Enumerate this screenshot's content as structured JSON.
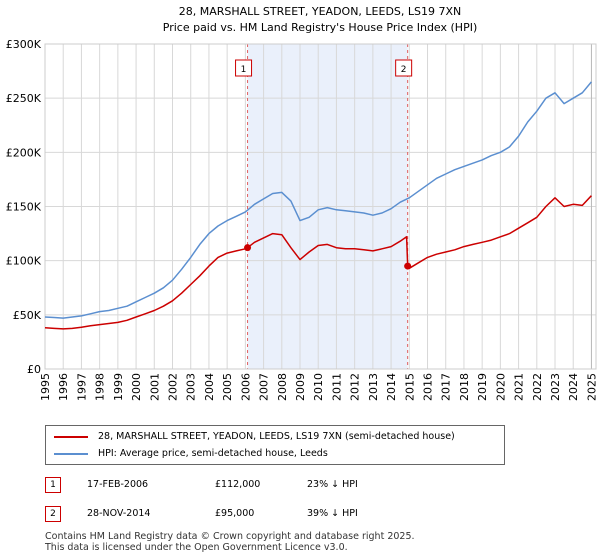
{
  "chart_data": {
    "type": "line",
    "title": "28, MARSHALL STREET, YEADON, LEEDS, LS19 7XN",
    "subtitle": "Price paid vs. HM Land Registry's House Price Index (HPI)",
    "xlabel": "",
    "ylabel": "",
    "xlim": [
      1995,
      2025.25
    ],
    "ylim": [
      0,
      300000
    ],
    "x_ticks": [
      1995,
      1996,
      1997,
      1998,
      1999,
      2000,
      2001,
      2002,
      2003,
      2004,
      2005,
      2006,
      2007,
      2008,
      2009,
      2010,
      2011,
      2012,
      2013,
      2014,
      2015,
      2016,
      2017,
      2018,
      2019,
      2020,
      2021,
      2022,
      2023,
      2024,
      2025
    ],
    "y_ticks": [
      0,
      50000,
      100000,
      150000,
      200000,
      250000,
      300000
    ],
    "y_tick_labels": [
      "£0",
      "£50K",
      "£100K",
      "£150K",
      "£200K",
      "£250K",
      "£300K"
    ],
    "grid": true,
    "shaded_region": [
      2006.12,
      2014.91
    ],
    "series": [
      {
        "name": "28, MARSHALL STREET, YEADON, LEEDS, LS19 7XN (semi-detached house)",
        "color": "#cc0000",
        "x": [
          1995.0,
          1995.5,
          1996.0,
          1996.5,
          1997.0,
          1997.5,
          1998.0,
          1998.5,
          1999.0,
          1999.5,
          2000.0,
          2000.5,
          2001.0,
          2001.5,
          2002.0,
          2002.5,
          2003.0,
          2003.5,
          2004.0,
          2004.5,
          2005.0,
          2005.5,
          2006.0,
          2006.12,
          2006.5,
          2007.0,
          2007.5,
          2008.0,
          2008.5,
          2009.0,
          2009.5,
          2010.0,
          2010.5,
          2011.0,
          2011.5,
          2012.0,
          2012.5,
          2013.0,
          2013.5,
          2014.0,
          2014.5,
          2014.85,
          2014.91,
          2015.0,
          2015.5,
          2016.0,
          2016.5,
          2017.0,
          2017.5,
          2018.0,
          2018.5,
          2019.0,
          2019.5,
          2020.0,
          2020.5,
          2021.0,
          2021.5,
          2022.0,
          2022.5,
          2023.0,
          2023.5,
          2024.0,
          2024.5,
          2025.0
        ],
        "y": [
          38000,
          37500,
          37000,
          37500,
          38500,
          40000,
          41000,
          42000,
          43000,
          45000,
          48000,
          51000,
          54000,
          58000,
          63000,
          70000,
          78000,
          86000,
          95000,
          103000,
          107000,
          109000,
          111000,
          112000,
          117000,
          121000,
          125000,
          124000,
          112000,
          101000,
          108000,
          114000,
          115000,
          112000,
          111000,
          111000,
          110000,
          109000,
          111000,
          113000,
          118000,
          122000,
          95000,
          93000,
          98000,
          103000,
          106000,
          108000,
          110000,
          113000,
          115000,
          117000,
          119000,
          122000,
          125000,
          130000,
          135000,
          140000,
          150000,
          158000,
          150000,
          152000,
          151000,
          160000
        ]
      },
      {
        "name": "HPI: Average price, semi-detached house, Leeds",
        "color": "#5b8fd0",
        "x": [
          1995.0,
          1995.5,
          1996.0,
          1996.5,
          1997.0,
          1997.5,
          1998.0,
          1998.5,
          1999.0,
          1999.5,
          2000.0,
          2000.5,
          2001.0,
          2001.5,
          2002.0,
          2002.5,
          2003.0,
          2003.5,
          2004.0,
          2004.5,
          2005.0,
          2005.5,
          2006.0,
          2006.5,
          2007.0,
          2007.5,
          2008.0,
          2008.5,
          2009.0,
          2009.5,
          2010.0,
          2010.5,
          2011.0,
          2011.5,
          2012.0,
          2012.5,
          2013.0,
          2013.5,
          2014.0,
          2014.5,
          2015.0,
          2015.5,
          2016.0,
          2016.5,
          2017.0,
          2017.5,
          2018.0,
          2018.5,
          2019.0,
          2019.5,
          2020.0,
          2020.5,
          2021.0,
          2021.5,
          2022.0,
          2022.5,
          2023.0,
          2023.5,
          2024.0,
          2024.5,
          2025.0
        ],
        "y": [
          48000,
          47500,
          47000,
          48000,
          49000,
          51000,
          53000,
          54000,
          56000,
          58000,
          62000,
          66000,
          70000,
          75000,
          82000,
          92000,
          103000,
          115000,
          125000,
          132000,
          137000,
          141000,
          145000,
          152000,
          157000,
          162000,
          163000,
          155000,
          137000,
          140000,
          147000,
          149000,
          147000,
          146000,
          145000,
          144000,
          142000,
          144000,
          148000,
          154000,
          158000,
          164000,
          170000,
          176000,
          180000,
          184000,
          187000,
          190000,
          193000,
          197000,
          200000,
          205000,
          215000,
          228000,
          238000,
          250000,
          255000,
          245000,
          250000,
          255000,
          265000
        ]
      }
    ],
    "sales": [
      {
        "label": "1",
        "x": 2006.12,
        "y": 112000
      },
      {
        "label": "2",
        "x": 2014.91,
        "y": 95000
      }
    ]
  },
  "legend": {
    "items": [
      {
        "label": "28, MARSHALL STREET, YEADON, LEEDS, LS19 7XN (semi-detached house)",
        "color": "#cc0000"
      },
      {
        "label": "HPI: Average price, semi-detached house, Leeds",
        "color": "#5b8fd0"
      }
    ]
  },
  "sales_table": [
    {
      "num": "1",
      "date": "17-FEB-2006",
      "price": "£112,000",
      "hpi": "23% ↓ HPI"
    },
    {
      "num": "2",
      "date": "28-NOV-2014",
      "price": "£95,000",
      "hpi": "39% ↓ HPI"
    }
  ],
  "footer": {
    "line1": "Contains HM Land Registry data © Crown copyright and database right 2025.",
    "line2": "This data is licensed under the Open Government Licence v3.0."
  }
}
